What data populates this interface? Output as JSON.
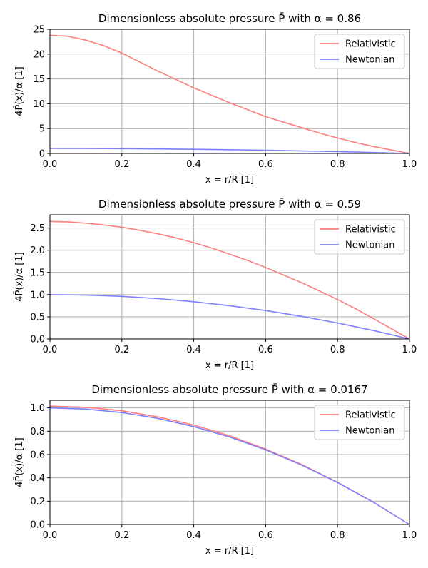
{
  "chart_data": [
    {
      "type": "line",
      "title": "Dimensionless absolute pressure P̄ with α = 0.86",
      "xlabel": "x = r/R  [1]",
      "ylabel": "4P̄(x)/α  [1]",
      "xlim": [
        0,
        1
      ],
      "ylim": [
        0,
        25
      ],
      "xticks": [
        "0.0",
        "0.2",
        "0.4",
        "0.6",
        "0.8",
        "1.0"
      ],
      "yticks": [
        "0",
        "5",
        "10",
        "15",
        "20",
        "25"
      ],
      "grid": true,
      "legend_position": "top-right",
      "series": [
        {
          "name": "Relativistic",
          "color": "#ff7f7f",
          "x": [
            0.0,
            0.05,
            0.1,
            0.15,
            0.2,
            0.25,
            0.3,
            0.35,
            0.4,
            0.45,
            0.5,
            0.55,
            0.6,
            0.65,
            0.7,
            0.75,
            0.8,
            0.85,
            0.9,
            0.95,
            1.0
          ],
          "y": [
            23.8,
            23.6,
            22.8,
            21.7,
            20.2,
            18.4,
            16.6,
            14.9,
            13.2,
            11.7,
            10.2,
            8.8,
            7.4,
            6.3,
            5.2,
            4.1,
            3.1,
            2.2,
            1.4,
            0.7,
            0.0
          ]
        },
        {
          "name": "Newtonian",
          "color": "#7f7fff",
          "x": [
            0.0,
            0.1,
            0.2,
            0.3,
            0.4,
            0.5,
            0.6,
            0.7,
            0.8,
            0.9,
            1.0
          ],
          "y": [
            1.0,
            0.99,
            0.96,
            0.91,
            0.84,
            0.75,
            0.64,
            0.51,
            0.36,
            0.19,
            0.0
          ]
        }
      ]
    },
    {
      "type": "line",
      "title": "Dimensionless absolute pressure P̄ with α = 0.59",
      "xlabel": "x = r/R  [1]",
      "ylabel": "4P̄(x)/α  [1]",
      "xlim": [
        0,
        1
      ],
      "ylim": [
        0,
        2.8
      ],
      "xticks": [
        "0.0",
        "0.2",
        "0.4",
        "0.6",
        "0.8",
        "1.0"
      ],
      "yticks": [
        "0.0",
        "0.5",
        "1.0",
        "1.5",
        "2.0",
        "2.5"
      ],
      "grid": true,
      "legend_position": "top-right",
      "series": [
        {
          "name": "Relativistic",
          "color": "#ff7f7f",
          "x": [
            0.0,
            0.05,
            0.1,
            0.15,
            0.2,
            0.25,
            0.3,
            0.35,
            0.4,
            0.45,
            0.5,
            0.55,
            0.6,
            0.65,
            0.7,
            0.75,
            0.8,
            0.85,
            0.9,
            0.95,
            1.0
          ],
          "y": [
            2.65,
            2.64,
            2.61,
            2.57,
            2.52,
            2.45,
            2.37,
            2.28,
            2.17,
            2.05,
            1.91,
            1.77,
            1.61,
            1.44,
            1.27,
            1.08,
            0.89,
            0.68,
            0.46,
            0.23,
            0.0
          ]
        },
        {
          "name": "Newtonian",
          "color": "#7f7fff",
          "x": [
            0.0,
            0.1,
            0.2,
            0.3,
            0.4,
            0.5,
            0.6,
            0.7,
            0.8,
            0.9,
            1.0
          ],
          "y": [
            1.0,
            0.99,
            0.96,
            0.91,
            0.84,
            0.75,
            0.64,
            0.51,
            0.36,
            0.19,
            0.0
          ]
        }
      ]
    },
    {
      "type": "line",
      "title": "Dimensionless absolute pressure P̄ with α = 0.0167",
      "xlabel": "x = r/R  [1]",
      "ylabel": "4P̄(x)/α  [1]",
      "xlim": [
        0,
        1
      ],
      "ylim": [
        0,
        1.065
      ],
      "xticks": [
        "0.0",
        "0.2",
        "0.4",
        "0.6",
        "0.8",
        "1.0"
      ],
      "yticks": [
        "0.0",
        "0.2",
        "0.4",
        "0.6",
        "0.8",
        "1.0"
      ],
      "grid": true,
      "legend_position": "top-right",
      "series": [
        {
          "name": "Relativistic",
          "color": "#ff7f7f",
          "x": [
            0.0,
            0.1,
            0.2,
            0.3,
            0.4,
            0.5,
            0.6,
            0.7,
            0.8,
            0.9,
            1.0
          ],
          "y": [
            1.015,
            1.005,
            0.975,
            0.923,
            0.853,
            0.76,
            0.647,
            0.515,
            0.362,
            0.191,
            0.0
          ]
        },
        {
          "name": "Newtonian",
          "color": "#7f7fff",
          "x": [
            0.0,
            0.1,
            0.2,
            0.3,
            0.4,
            0.5,
            0.6,
            0.7,
            0.8,
            0.9,
            1.0
          ],
          "y": [
            1.0,
            0.99,
            0.96,
            0.91,
            0.84,
            0.75,
            0.64,
            0.51,
            0.36,
            0.19,
            0.0
          ]
        }
      ]
    }
  ]
}
